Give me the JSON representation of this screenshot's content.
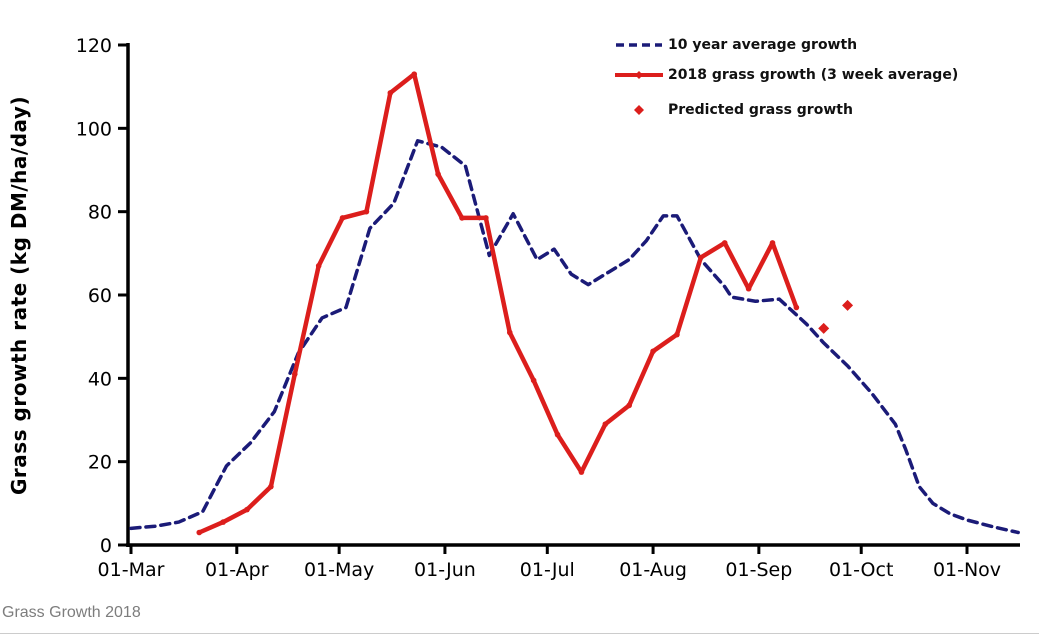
{
  "page": {
    "caption": "Grass Growth 2018"
  },
  "colors": {
    "axis": "#000000",
    "tick_label": "#000000",
    "caption_text": "#7d7d7d",
    "divider": "#cccccc",
    "average_line": "#1b1b78",
    "grass_2018_line": "#dc1e1c",
    "predicted_marker": "#dc1e1c"
  },
  "chart_data": {
    "type": "line",
    "title": "",
    "xlabel": "",
    "ylabel": "Grass growth rate (kg DM/ha/day)",
    "ylim": [
      0,
      120
    ],
    "y_ticks": [
      0,
      20,
      40,
      60,
      80,
      100,
      120
    ],
    "x_ticks": [
      "01-Mar",
      "01-Apr",
      "01-May",
      "01-Jun",
      "01-Jul",
      "01-Aug",
      "01-Sep",
      "01-Oct",
      "01-Nov"
    ],
    "x_range": [
      "01-Mar",
      "16-Nov"
    ],
    "grid": false,
    "legend_position": "top-right",
    "units": "kg DM/ha/day",
    "series": [
      {
        "name": "10 year average growth",
        "type": "line",
        "style": "dashed",
        "color": "#1b1b78",
        "points": [
          [
            "01-Mar",
            4
          ],
          [
            "08-Mar",
            4.5
          ],
          [
            "15-Mar",
            5.5
          ],
          [
            "22-Mar",
            8
          ],
          [
            "29-Mar",
            19
          ],
          [
            "05-Apr",
            24.5
          ],
          [
            "12-Apr",
            32
          ],
          [
            "19-Apr",
            46
          ],
          [
            "26-Apr",
            54.5
          ],
          [
            "03-May",
            57
          ],
          [
            "10-May",
            76
          ],
          [
            "17-May",
            82
          ],
          [
            "24-May",
            97
          ],
          [
            "31-May",
            95.5
          ],
          [
            "07-Jun",
            91
          ],
          [
            "14-Jun",
            69.5
          ],
          [
            "21-Jun",
            79.5
          ],
          [
            "28-Jun",
            68.5
          ],
          [
            "03-Jul",
            71
          ],
          [
            "08-Jul",
            65
          ],
          [
            "13-Jul",
            62.5
          ],
          [
            "19-Jul",
            65.5
          ],
          [
            "25-Jul",
            68.5
          ],
          [
            "30-Jul",
            73
          ],
          [
            "04-Aug",
            79
          ],
          [
            "08-Aug",
            79
          ],
          [
            "15-Aug",
            68.5
          ],
          [
            "22-Aug",
            62
          ],
          [
            "24-Aug",
            59.5
          ],
          [
            "31-Aug",
            58.5
          ],
          [
            "07-Sep",
            59
          ],
          [
            "15-Sep",
            53
          ],
          [
            "20-Sep",
            48.5
          ],
          [
            "27-Sep",
            43
          ],
          [
            "04-Oct",
            36.5
          ],
          [
            "11-Oct",
            29
          ],
          [
            "14-Oct",
            23
          ],
          [
            "18-Oct",
            14
          ],
          [
            "22-Oct",
            10
          ],
          [
            "27-Oct",
            7.5
          ],
          [
            "01-Nov",
            6
          ],
          [
            "09-Nov",
            4.3
          ],
          [
            "16-Nov",
            3
          ]
        ]
      },
      {
        "name": "2018 grass growth (3 week average)",
        "type": "line",
        "style": "solid",
        "color": "#dc1e1c",
        "points": [
          [
            "21-Mar",
            3
          ],
          [
            "28-Mar",
            5.5
          ],
          [
            "04-Apr",
            8.5
          ],
          [
            "11-Apr",
            14
          ],
          [
            "18-Apr",
            41
          ],
          [
            "25-Apr",
            67
          ],
          [
            "02-May",
            78.5
          ],
          [
            "09-May",
            80
          ],
          [
            "16-May",
            108.5
          ],
          [
            "23-May",
            113
          ],
          [
            "30-May",
            89
          ],
          [
            "06-Jun",
            78.5
          ],
          [
            "13-Jun",
            78.5
          ],
          [
            "20-Jun",
            51
          ],
          [
            "27-Jun",
            39.5
          ],
          [
            "04-Jul",
            26.5
          ],
          [
            "11-Jul",
            17.5
          ],
          [
            "18-Jul",
            29
          ],
          [
            "25-Jul",
            33.5
          ],
          [
            "01-Aug",
            46.5
          ],
          [
            "08-Aug",
            50.5
          ],
          [
            "15-Aug",
            69
          ],
          [
            "22-Aug",
            72.5
          ],
          [
            "29-Aug",
            61.5
          ],
          [
            "05-Sep",
            72.5
          ],
          [
            "12-Sep",
            57
          ]
        ]
      },
      {
        "name": "Predicted grass growth",
        "type": "scatter",
        "marker": "diamond",
        "color": "#dc1e1c",
        "points": [
          [
            "20-Sep",
            52
          ],
          [
            "27-Sep",
            57.5
          ]
        ]
      }
    ]
  }
}
